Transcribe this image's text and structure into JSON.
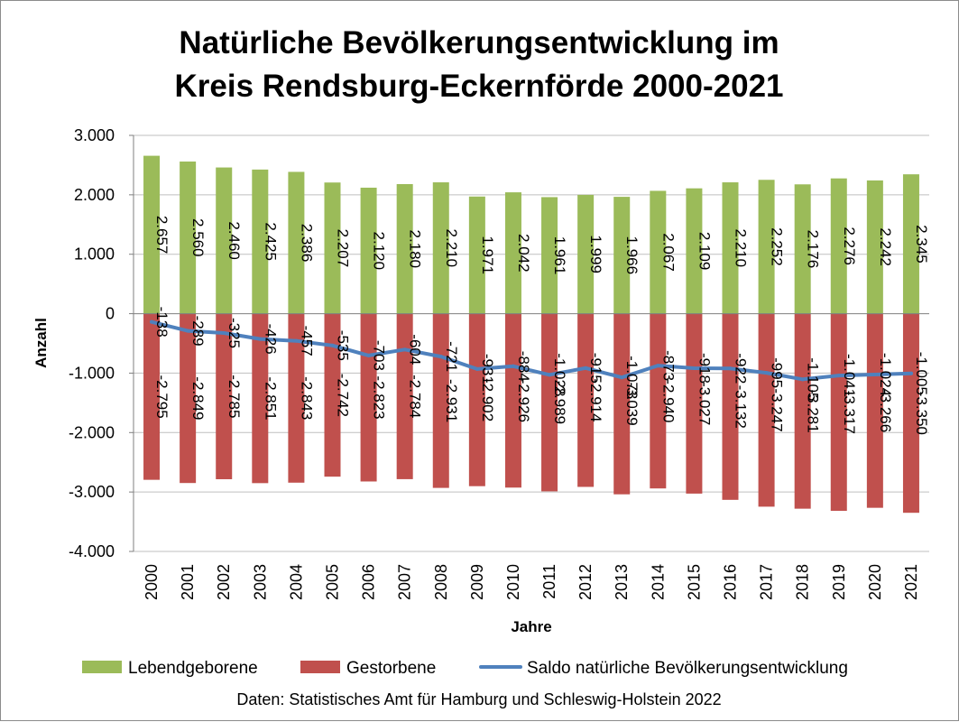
{
  "chart_data": {
    "type": "bar",
    "title_lines": [
      "Natürliche Bevölkerungsentwicklung im",
      "Kreis Rendsburg-Eckernförde 2000-2021"
    ],
    "xlabel": "Jahre",
    "ylabel": "Anzahl",
    "source": "Daten: Statistisches Amt für Hamburg und Schleswig-Holstein 2022",
    "ylim": [
      -4000,
      3000
    ],
    "yticks": [
      3000,
      2000,
      1000,
      0,
      -1000,
      -2000,
      -3000,
      -4000
    ],
    "ytick_labels": [
      "3.000",
      "2.000",
      "1.000",
      "0",
      "-1.000",
      "-2.000",
      "-3.000",
      "-4.000"
    ],
    "grid": true,
    "legend_position": "bottom",
    "categories": [
      "2000",
      "2001",
      "2002",
      "2003",
      "2004",
      "2005",
      "2006",
      "2007",
      "2008",
      "2009",
      "2010",
      "2011",
      "2012",
      "2013",
      "2014",
      "2015",
      "2016",
      "2017",
      "2018",
      "2019",
      "2020",
      "2021"
    ],
    "series": [
      {
        "name": "Lebendgeborene",
        "kind": "bar",
        "color": "#9bbb59",
        "values": [
          2657,
          2560,
          2460,
          2425,
          2386,
          2207,
          2120,
          2180,
          2210,
          1971,
          2042,
          1961,
          1999,
          1966,
          2067,
          2109,
          2210,
          2252,
          2176,
          2276,
          2242,
          2345
        ],
        "labels": [
          "2.657",
          "2.560",
          "2.460",
          "2.425",
          "2.386",
          "2.207",
          "2.120",
          "2.180",
          "2.210",
          "1.971",
          "2.042",
          "1.961",
          "1.999",
          "1.966",
          "2.067",
          "2.109",
          "2.210",
          "2.252",
          "2.176",
          "2.276",
          "2.242",
          "2.345"
        ]
      },
      {
        "name": "Gestorbene",
        "kind": "bar",
        "color": "#c0504d",
        "values": [
          -2795,
          -2849,
          -2785,
          -2851,
          -2843,
          -2742,
          -2823,
          -2784,
          -2931,
          -2902,
          -2926,
          -2989,
          -2914,
          -3039,
          -2940,
          -3027,
          -3132,
          -3247,
          -3281,
          -3317,
          -3266,
          -3350
        ],
        "labels": [
          "-2.795",
          "-2.849",
          "-2.785",
          "-2.851",
          "-2.843",
          "-2.742",
          "-2.823",
          "-2.784",
          "-2.931",
          "-2.902",
          "-2.926",
          "-2.989",
          "-2.914",
          "-3.039",
          "-2.940",
          "-3.027",
          "-3.132",
          "-3.247",
          "-3.281",
          "-3.317",
          "-3.266",
          "-3.350"
        ]
      },
      {
        "name": "Saldo natürliche Bevölkerungsentwicklung",
        "kind": "line",
        "color": "#4f81bd",
        "values": [
          -138,
          -289,
          -325,
          -426,
          -457,
          -535,
          -703,
          -604,
          -721,
          -931,
          -884,
          -1028,
          -915,
          -1073,
          -873,
          -918,
          -922,
          -995,
          -1105,
          -1041,
          -1024,
          -1005
        ],
        "labels": [
          "-138",
          "-289",
          "-325",
          "-426",
          "-457",
          "-535",
          "-703",
          "-604",
          "-721",
          "-931",
          "-884",
          "-1.028",
          "-915",
          "-1.073",
          "-873",
          "-918",
          "-922",
          "-995",
          "-1.105",
          "-1.041",
          "-1.024",
          "-1.005"
        ]
      }
    ]
  }
}
